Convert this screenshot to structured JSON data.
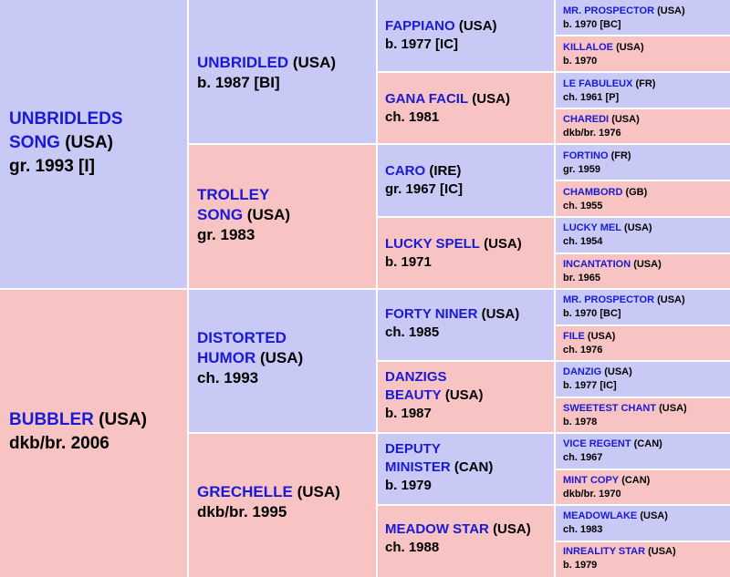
{
  "horses": {
    "sire": {
      "name_a": "UNBRIDLEDS",
      "name_b": "SONG",
      "country": "(USA)",
      "detail": "gr. 1993 [I]"
    },
    "dam": {
      "name_a": "BUBBLER",
      "country": "(USA)",
      "detail": "dkb/br. 2006"
    },
    "ss": {
      "name_a": "UNBRIDLED",
      "country": "(USA)",
      "detail": "b. 1987 [BI]"
    },
    "sd": {
      "name_a": "TROLLEY",
      "name_b": "SONG",
      "country": "(USA)",
      "detail": "gr. 1983"
    },
    "ds": {
      "name_a": "DISTORTED",
      "name_b": "HUMOR",
      "country": "(USA)",
      "detail": "ch. 1993"
    },
    "dd": {
      "name_a": "GRECHELLE",
      "country": "(USA)",
      "detail": "dkb/br. 1995"
    },
    "sss": {
      "name_a": "FAPPIANO",
      "country": "(USA)",
      "detail": "b. 1977 [IC]"
    },
    "ssd": {
      "name_a": "GANA FACIL",
      "country": "(USA)",
      "detail": "ch. 1981"
    },
    "sds": {
      "name_a": "CARO",
      "country": "(IRE)",
      "detail": "gr. 1967 [IC]"
    },
    "sdd": {
      "name_a": "LUCKY SPELL",
      "country": "(USA)",
      "detail": "b. 1971"
    },
    "dss": {
      "name_a": "FORTY NINER",
      "country": "(USA)",
      "detail": "ch. 1985"
    },
    "dsd": {
      "name_a": "DANZIGS",
      "name_b": "BEAUTY",
      "country": "(USA)",
      "detail": "b. 1987"
    },
    "dds": {
      "name_a": "DEPUTY",
      "name_b": "MINISTER",
      "country": "(CAN)",
      "detail": "b. 1979"
    },
    "ddd": {
      "name_a": "MEADOW STAR",
      "country": "(USA)",
      "detail": "ch. 1988"
    },
    "ssss": {
      "name_a": "MR. PROSPECTOR",
      "country": "(USA)",
      "detail": "b. 1970 [BC]"
    },
    "sssd": {
      "name_a": "KILLALOE",
      "country": "(USA)",
      "detail": "b. 1970"
    },
    "ssds": {
      "name_a": "LE FABULEUX",
      "country": "(FR)",
      "detail": "ch. 1961 [P]"
    },
    "ssdd": {
      "name_a": "CHAREDI",
      "country": "(USA)",
      "detail": "dkb/br. 1976"
    },
    "sdss": {
      "name_a": "FORTINO",
      "country": "(FR)",
      "detail": "gr. 1959"
    },
    "sdsd": {
      "name_a": "CHAMBORD",
      "country": "(GB)",
      "detail": "ch. 1955"
    },
    "sdds": {
      "name_a": "LUCKY MEL",
      "country": "(USA)",
      "detail": "ch. 1954"
    },
    "sddd": {
      "name_a": "INCANTATION",
      "country": "(USA)",
      "detail": "br. 1965"
    },
    "dsss": {
      "name_a": "MR. PROSPECTOR",
      "country": "(USA)",
      "detail": "b. 1970 [BC]"
    },
    "dssd": {
      "name_a": "FILE",
      "country": "(USA)",
      "detail": "ch. 1976"
    },
    "dsds": {
      "name_a": "DANZIG",
      "country": "(USA)",
      "detail": "b. 1977 [IC]"
    },
    "dsdd": {
      "name_a": "SWEETEST CHANT",
      "country": "(USA)",
      "detail": "b. 1978"
    },
    "ddss": {
      "name_a": "VICE REGENT",
      "country": "(CAN)",
      "detail": "ch. 1967"
    },
    "ddsd": {
      "name_a": "MINT COPY",
      "country": "(CAN)",
      "detail": "dkb/br. 1970"
    },
    "ddds": {
      "name_a": "MEADOWLAKE",
      "country": "(USA)",
      "detail": "ch. 1983"
    },
    "dddd": {
      "name_a": "INREALITY STAR",
      "country": "(USA)",
      "detail": "b. 1979"
    }
  },
  "colors": {
    "male_bg": "#c9c9f5",
    "female_bg": "#f7c3c3",
    "name_text": "#1a1ad6"
  }
}
